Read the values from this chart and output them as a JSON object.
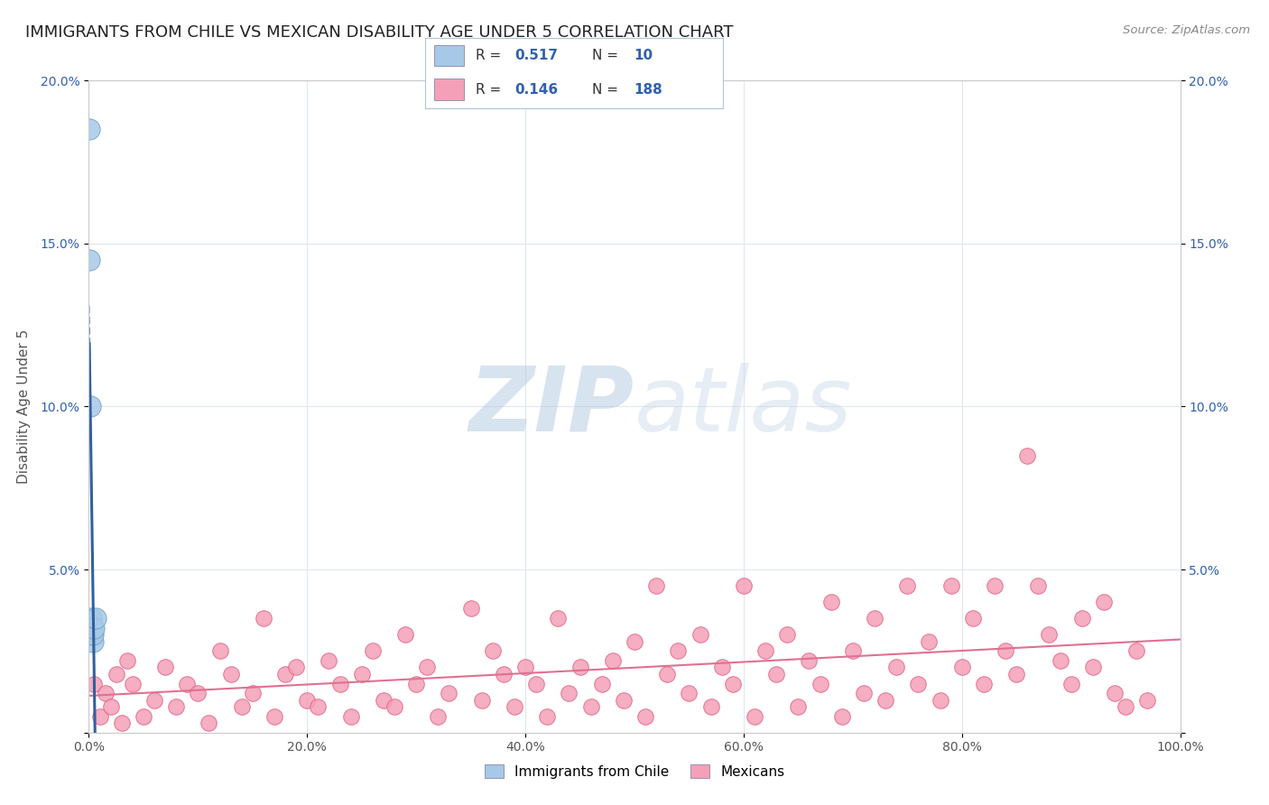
{
  "title": "IMMIGRANTS FROM CHILE VS MEXICAN DISABILITY AGE UNDER 5 CORRELATION CHART",
  "source": "Source: ZipAtlas.com",
  "ylabel": "Disability Age Under 5",
  "xlim": [
    0,
    100
  ],
  "ylim": [
    0,
    20
  ],
  "xtick_labels": [
    "0.0%",
    "20.0%",
    "40.0%",
    "60.0%",
    "80.0%",
    "100.0%"
  ],
  "xtick_values": [
    0,
    20,
    40,
    60,
    80,
    100
  ],
  "ytick_labels": [
    "",
    "5.0%",
    "10.0%",
    "15.0%",
    "20.0%"
  ],
  "ytick_values": [
    0,
    5,
    10,
    15,
    20
  ],
  "chile_scatter_x": [
    0.05,
    0.08,
    0.12,
    0.18,
    0.25,
    0.3,
    0.35,
    0.4,
    0.5,
    0.6
  ],
  "chile_scatter_y": [
    18.5,
    14.5,
    10.0,
    3.5,
    3.2,
    3.0,
    2.8,
    3.0,
    3.2,
    3.5
  ],
  "mexican_scatter_x": [
    0.5,
    1.0,
    1.5,
    2.0,
    2.5,
    3.0,
    3.5,
    4.0,
    5.0,
    6.0,
    7.0,
    8.0,
    9.0,
    10.0,
    11.0,
    12.0,
    13.0,
    14.0,
    15.0,
    16.0,
    17.0,
    18.0,
    19.0,
    20.0,
    21.0,
    22.0,
    23.0,
    24.0,
    25.0,
    26.0,
    27.0,
    28.0,
    29.0,
    30.0,
    31.0,
    32.0,
    33.0,
    35.0,
    36.0,
    37.0,
    38.0,
    39.0,
    40.0,
    41.0,
    42.0,
    43.0,
    44.0,
    45.0,
    46.0,
    47.0,
    48.0,
    49.0,
    50.0,
    51.0,
    52.0,
    53.0,
    54.0,
    55.0,
    56.0,
    57.0,
    58.0,
    59.0,
    60.0,
    61.0,
    62.0,
    63.0,
    64.0,
    65.0,
    66.0,
    67.0,
    68.0,
    69.0,
    70.0,
    71.0,
    72.0,
    73.0,
    74.0,
    75.0,
    76.0,
    77.0,
    78.0,
    79.0,
    80.0,
    81.0,
    82.0,
    83.0,
    84.0,
    85.0,
    86.0,
    87.0,
    88.0,
    89.0,
    90.0,
    91.0,
    92.0,
    93.0,
    94.0,
    95.0,
    96.0,
    97.0
  ],
  "mexican_scatter_y": [
    1.5,
    0.5,
    1.2,
    0.8,
    1.8,
    0.3,
    2.2,
    1.5,
    0.5,
    1.0,
    2.0,
    0.8,
    1.5,
    1.2,
    0.3,
    2.5,
    1.8,
    0.8,
    1.2,
    3.5,
    0.5,
    1.8,
    2.0,
    1.0,
    0.8,
    2.2,
    1.5,
    0.5,
    1.8,
    2.5,
    1.0,
    0.8,
    3.0,
    1.5,
    2.0,
    0.5,
    1.2,
    3.8,
    1.0,
    2.5,
    1.8,
    0.8,
    2.0,
    1.5,
    0.5,
    3.5,
    1.2,
    2.0,
    0.8,
    1.5,
    2.2,
    1.0,
    2.8,
    0.5,
    4.5,
    1.8,
    2.5,
    1.2,
    3.0,
    0.8,
    2.0,
    1.5,
    4.5,
    0.5,
    2.5,
    1.8,
    3.0,
    0.8,
    2.2,
    1.5,
    4.0,
    0.5,
    2.5,
    1.2,
    3.5,
    1.0,
    2.0,
    4.5,
    1.5,
    2.8,
    1.0,
    4.5,
    2.0,
    3.5,
    1.5,
    4.5,
    2.5,
    1.8,
    8.5,
    4.5,
    3.0,
    2.2,
    1.5,
    3.5,
    2.0,
    4.0,
    1.2,
    0.8,
    2.5,
    1.0
  ],
  "chile_color": "#a8c8e8",
  "chile_edge_color": "#6a9fc0",
  "mexican_color": "#f4a0b8",
  "mexican_edge_color": "#e06080",
  "chile_trend_color": "#3060a0",
  "mexican_trend_color": "#e07090",
  "watermark_zip": "ZIP",
  "watermark_atlas": "atlas",
  "watermark_color": "#c8d8e8",
  "background_color": "#ffffff",
  "grid_color": "#dde8f0",
  "legend_chile_color": "#a8c8e8",
  "legend_mexican_color": "#f4a0b8",
  "legend_r_chile": "0.517",
  "legend_n_chile": "10",
  "legend_r_mexican": "0.146",
  "legend_n_mexican": "188",
  "text_color_label": "#333333",
  "text_color_value": "#3060b0"
}
